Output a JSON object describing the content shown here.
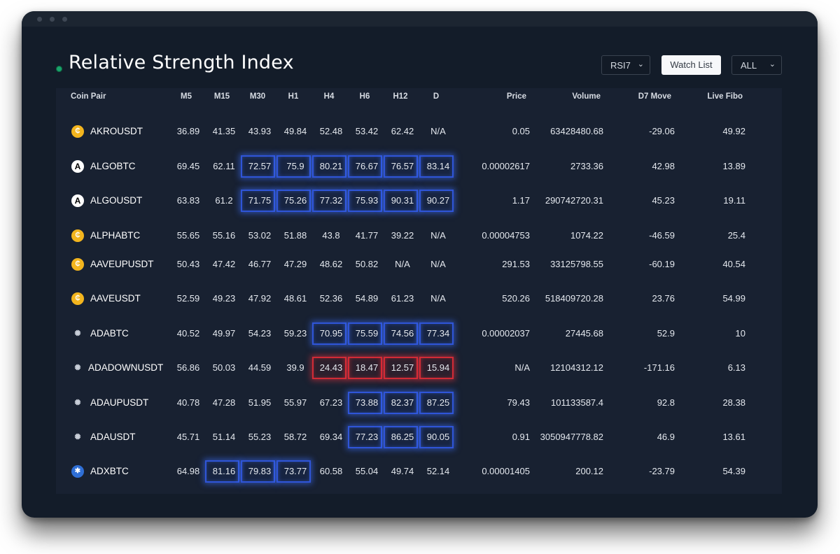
{
  "page_title": "Relative Strength Index",
  "controls": {
    "indicator_select": "RSI7",
    "watch_list_label": "Watch List",
    "filter_select": "ALL",
    "chevron": "⌄"
  },
  "columns": [
    "Coin Pair",
    "M5",
    "M15",
    "M30",
    "H1",
    "H4",
    "H6",
    "H12",
    "D",
    "Price",
    "Volume",
    "D7 Move",
    "Live Fibo"
  ],
  "rows": [
    {
      "name": "AKROUSDT",
      "icon": "akro-coin-icon",
      "glyph": "₵",
      "values": [
        "36.89",
        "41.35",
        "43.93",
        "49.84",
        "52.48",
        "53.42",
        "62.42",
        "N/A"
      ],
      "price": "0.05",
      "volume": "63428480.68",
      "d7": "-29.06",
      "fibo": "49.92"
    },
    {
      "name": "ALGOBTC",
      "icon": "algorand-icon",
      "glyph": "A",
      "values": [
        "69.45",
        "62.11",
        "72.57",
        "75.9",
        "80.21",
        "76.67",
        "76.57",
        "83.14"
      ],
      "price": "0.00002617",
      "volume": "2733.36",
      "d7": "42.98",
      "fibo": "13.89"
    },
    {
      "name": "ALGOUSDT",
      "icon": "algorand-icon",
      "glyph": "A",
      "values": [
        "63.83",
        "61.2",
        "71.75",
        "75.26",
        "77.32",
        "75.93",
        "90.31",
        "90.27"
      ],
      "price": "1.17",
      "volume": "290742720.31",
      "d7": "45.23",
      "fibo": "19.11"
    },
    {
      "name": "ALPHABTC",
      "icon": "alpha-coin-icon",
      "glyph": "₵",
      "values": [
        "55.65",
        "55.16",
        "53.02",
        "51.88",
        "43.8",
        "41.77",
        "39.22",
        "N/A"
      ],
      "price": "0.00004753",
      "volume": "1074.22",
      "d7": "-46.59",
      "fibo": "25.4"
    },
    {
      "name": "AAVEUPUSDT",
      "icon": "aaveup-coin-icon",
      "glyph": "₵",
      "values": [
        "50.43",
        "47.42",
        "46.77",
        "47.29",
        "48.62",
        "50.82",
        "N/A",
        "N/A"
      ],
      "price": "291.53",
      "volume": "33125798.55",
      "d7": "-60.19",
      "fibo": "40.54"
    },
    {
      "name": "AAVEUSDT",
      "icon": "aave-coin-icon",
      "glyph": "₵",
      "values": [
        "52.59",
        "49.23",
        "47.92",
        "48.61",
        "52.36",
        "54.89",
        "61.23",
        "N/A"
      ],
      "price": "520.26",
      "volume": "518409720.28",
      "d7": "23.76",
      "fibo": "54.99"
    },
    {
      "name": "ADABTC",
      "icon": "cardano-icon",
      "glyph": "✺",
      "values": [
        "40.52",
        "49.97",
        "54.23",
        "59.23",
        "70.95",
        "75.59",
        "74.56",
        "77.34"
      ],
      "price": "0.00002037",
      "volume": "27445.68",
      "d7": "52.9",
      "fibo": "10"
    },
    {
      "name": "ADADOWNUSDT",
      "icon": "cardano-icon",
      "glyph": "✺",
      "values": [
        "56.86",
        "50.03",
        "44.59",
        "39.9",
        "24.43",
        "18.47",
        "12.57",
        "15.94"
      ],
      "price": "N/A",
      "volume": "12104312.12",
      "d7": "-171.16",
      "fibo": "6.13"
    },
    {
      "name": "ADAUPUSDT",
      "icon": "cardano-icon",
      "glyph": "✺",
      "values": [
        "40.78",
        "47.28",
        "51.95",
        "55.97",
        "67.23",
        "73.88",
        "82.37",
        "87.25"
      ],
      "price": "79.43",
      "volume": "101133587.4",
      "d7": "92.8",
      "fibo": "28.38"
    },
    {
      "name": "ADAUSDT",
      "icon": "cardano-icon",
      "glyph": "✺",
      "values": [
        "45.71",
        "51.14",
        "55.23",
        "58.72",
        "69.34",
        "77.23",
        "86.25",
        "90.05"
      ],
      "price": "0.91",
      "volume": "3050947778.82",
      "d7": "46.9",
      "fibo": "13.61"
    },
    {
      "name": "ADXBTC",
      "icon": "adx-bluetooth-icon",
      "glyph": "✱",
      "values": [
        "64.98",
        "81.16",
        "79.83",
        "73.77",
        "60.58",
        "55.04",
        "49.74",
        "52.14"
      ],
      "price": "0.00001405",
      "volume": "200.12",
      "d7": "-23.79",
      "fibo": "54.39"
    }
  ],
  "highlights": {
    "ALGOBTC": {
      "blue": [
        2,
        3,
        4,
        5,
        6,
        7
      ],
      "red": []
    },
    "ALGOUSDT": {
      "blue": [
        2,
        3,
        4,
        5,
        6,
        7
      ],
      "red": []
    },
    "ADABTC": {
      "blue": [
        4,
        5,
        6,
        7
      ],
      "red": []
    },
    "ADADOWNUSDT": {
      "blue": [],
      "red": [
        4,
        5,
        6,
        7
      ]
    },
    "ADAUPUSDT": {
      "blue": [
        5,
        6,
        7
      ],
      "red": []
    },
    "ADAUSDT": {
      "blue": [
        5,
        6,
        7
      ],
      "red": []
    },
    "ADXBTC": {
      "blue": [
        1,
        2,
        3
      ],
      "red": []
    }
  },
  "colors": {
    "window_bg": "#131c29",
    "table_bg": "#182131",
    "overbought_border": "#2f55d8",
    "oversold_border": "#d22b36",
    "coin_yellow": "#f3b51e"
  }
}
